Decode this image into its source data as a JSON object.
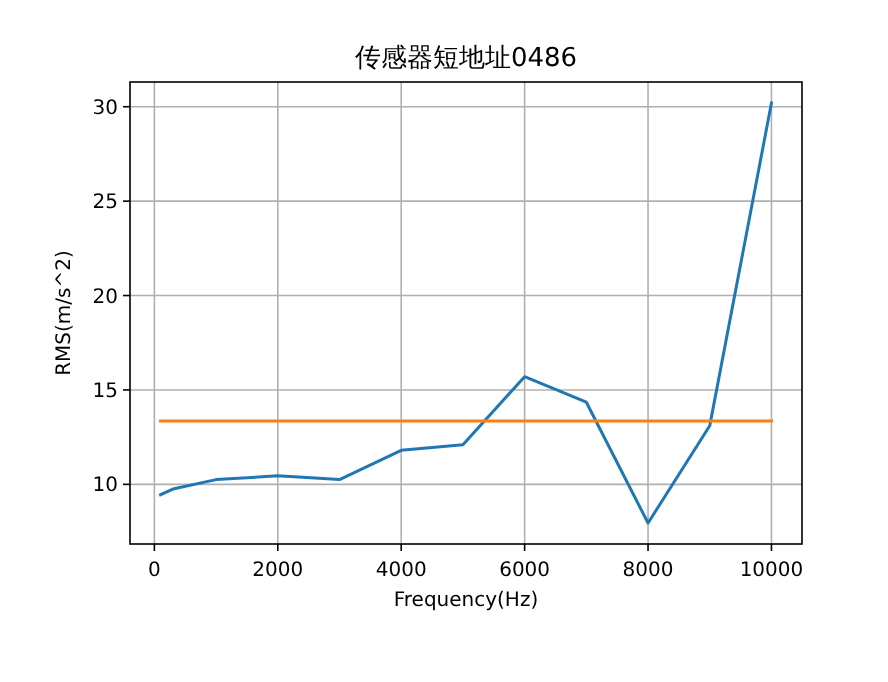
{
  "chart_data": {
    "type": "line",
    "title": "传感器短地址0486",
    "xlabel": "Frequency(Hz)",
    "ylabel": "RMS(m/s^2)",
    "xlim": [
      -395,
      10495
    ],
    "ylim": [
      6.84,
      31.31
    ],
    "xticks": [
      0,
      2000,
      4000,
      6000,
      8000,
      10000
    ],
    "yticks": [
      10,
      15,
      20,
      25,
      30
    ],
    "grid": true,
    "series": [
      {
        "color": "#1f77b4",
        "x": [
          100,
          300,
          1000,
          2000,
          3000,
          4000,
          5000,
          6000,
          7000,
          8000,
          9000,
          10000
        ],
        "values": [
          9.45,
          9.75,
          10.25,
          10.45,
          10.25,
          11.8,
          12.1,
          15.7,
          14.35,
          7.95,
          13.1,
          30.2
        ]
      },
      {
        "color": "#ff7f0e",
        "x": [
          100,
          10000
        ],
        "values": [
          13.35,
          13.35
        ]
      }
    ]
  }
}
